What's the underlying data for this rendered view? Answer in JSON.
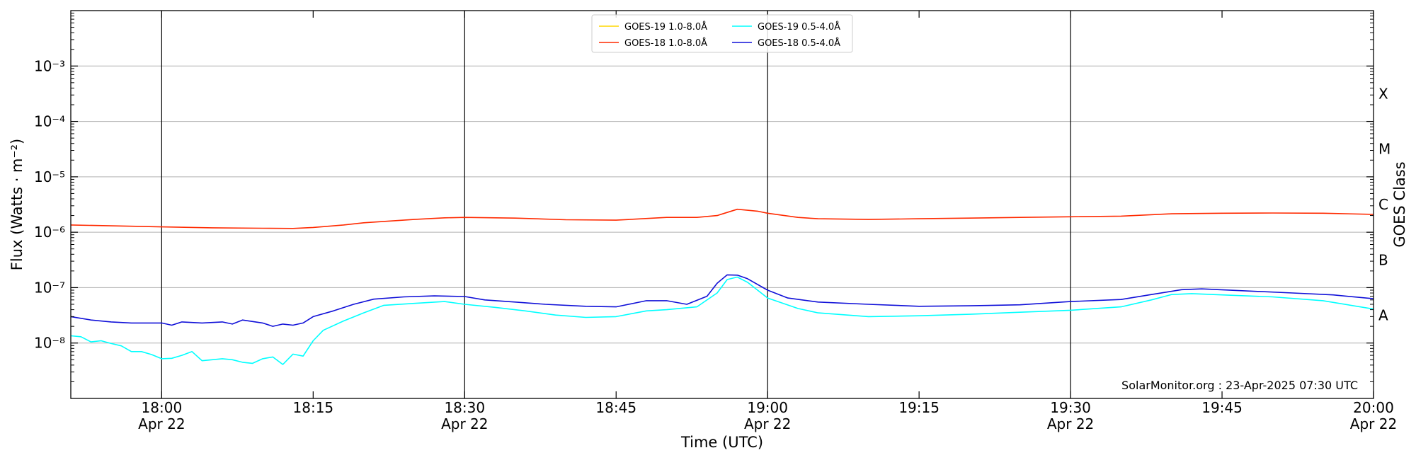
{
  "chart_data": {
    "type": "line",
    "xlabel": "Time (UTC)",
    "ylabel": "Flux (Watts · m⁻²)",
    "ylabel_right": "GOES Class",
    "x_range": [
      "2025-04-22T17:51",
      "2025-04-22T20:00"
    ],
    "y_scale": "log",
    "y_range": [
      1e-09,
      0.01
    ],
    "y_ticks": [
      {
        "value": 1e-08,
        "label": "10⁻⁸"
      },
      {
        "value": 1e-07,
        "label": "10⁻⁷"
      },
      {
        "value": 1e-06,
        "label": "10⁻⁶"
      },
      {
        "value": 1e-05,
        "label": "10⁻⁵"
      },
      {
        "value": 0.0001,
        "label": "10⁻⁴"
      },
      {
        "value": 0.001,
        "label": "10⁻³"
      }
    ],
    "x_ticks": [
      {
        "time": "2025-04-22T18:00",
        "label": "18:00",
        "date": "Apr 22",
        "major": true
      },
      {
        "time": "2025-04-22T18:15",
        "label": "18:15",
        "date": "",
        "major": false
      },
      {
        "time": "2025-04-22T18:30",
        "label": "18:30",
        "date": "Apr 22",
        "major": true
      },
      {
        "time": "2025-04-22T18:45",
        "label": "18:45",
        "date": "",
        "major": false
      },
      {
        "time": "2025-04-22T19:00",
        "label": "19:00",
        "date": "Apr 22",
        "major": true
      },
      {
        "time": "2025-04-22T19:15",
        "label": "19:15",
        "date": "",
        "major": false
      },
      {
        "time": "2025-04-22T19:30",
        "label": "19:30",
        "date": "Apr 22",
        "major": true
      },
      {
        "time": "2025-04-22T19:45",
        "label": "19:45",
        "date": "",
        "major": false
      },
      {
        "time": "2025-04-22T20:00",
        "label": "20:00",
        "date": "Apr 22",
        "major": true
      }
    ],
    "goes_classes": [
      {
        "label": "A",
        "lower": 1e-08
      },
      {
        "label": "B",
        "lower": 1e-07
      },
      {
        "label": "C",
        "lower": 1e-06
      },
      {
        "label": "M",
        "lower": 1e-05
      },
      {
        "label": "X",
        "lower": 0.0001
      }
    ],
    "grid": true,
    "legend_position": "top-center",
    "credit": "SolarMonitor.org : 23-Apr-2025 07:30 UTC",
    "series": [
      {
        "name": "GOES-19 1.0-8.0Å",
        "color": "#ffd700",
        "points": []
      },
      {
        "name": "GOES-18 1.0-8.0Å",
        "color": "#ff2a00",
        "points": [
          [
            "2025-04-22T17:51",
            1.35e-06
          ],
          [
            "2025-04-22T18:00",
            1.25e-06
          ],
          [
            "2025-04-22T18:05",
            1.2e-06
          ],
          [
            "2025-04-22T18:10",
            1.18e-06
          ],
          [
            "2025-04-22T18:13",
            1.17e-06
          ],
          [
            "2025-04-22T18:15",
            1.22e-06
          ],
          [
            "2025-04-22T18:18",
            1.35e-06
          ],
          [
            "2025-04-22T18:20",
            1.48e-06
          ],
          [
            "2025-04-22T18:25",
            1.7e-06
          ],
          [
            "2025-04-22T18:28",
            1.82e-06
          ],
          [
            "2025-04-22T18:30",
            1.85e-06
          ],
          [
            "2025-04-22T18:35",
            1.8e-06
          ],
          [
            "2025-04-22T18:40",
            1.68e-06
          ],
          [
            "2025-04-22T18:45",
            1.65e-06
          ],
          [
            "2025-04-22T18:50",
            1.85e-06
          ],
          [
            "2025-04-22T18:53",
            1.85e-06
          ],
          [
            "2025-04-22T18:55",
            2e-06
          ],
          [
            "2025-04-22T18:57",
            2.6e-06
          ],
          [
            "2025-04-22T18:59",
            2.4e-06
          ],
          [
            "2025-04-22T19:00",
            2.2e-06
          ],
          [
            "2025-04-22T19:03",
            1.85e-06
          ],
          [
            "2025-04-22T19:05",
            1.75e-06
          ],
          [
            "2025-04-22T19:10",
            1.7e-06
          ],
          [
            "2025-04-22T19:15",
            1.75e-06
          ],
          [
            "2025-04-22T19:20",
            1.8e-06
          ],
          [
            "2025-04-22T19:25",
            1.85e-06
          ],
          [
            "2025-04-22T19:30",
            1.9e-06
          ],
          [
            "2025-04-22T19:35",
            1.95e-06
          ],
          [
            "2025-04-22T19:40",
            2.15e-06
          ],
          [
            "2025-04-22T19:45",
            2.2e-06
          ],
          [
            "2025-04-22T19:50",
            2.22e-06
          ],
          [
            "2025-04-22T19:55",
            2.2e-06
          ],
          [
            "2025-04-22T20:00",
            2.1e-06
          ]
        ]
      },
      {
        "name": "GOES-19 0.5-4.0Å",
        "color": "#00ffff",
        "points": [
          [
            "2025-04-22T17:51",
            1.35e-08
          ],
          [
            "2025-04-22T17:52",
            1.3e-08
          ],
          [
            "2025-04-22T17:53",
            1.05e-08
          ],
          [
            "2025-04-22T17:54",
            1.1e-08
          ],
          [
            "2025-04-22T17:55",
            9.8e-09
          ],
          [
            "2025-04-22T17:56",
            8.9e-09
          ],
          [
            "2025-04-22T17:57",
            7e-09
          ],
          [
            "2025-04-22T17:58",
            7e-09
          ],
          [
            "2025-04-22T17:59",
            6.2e-09
          ],
          [
            "2025-04-22T18:00",
            5.2e-09
          ],
          [
            "2025-04-22T18:01",
            5.3e-09
          ],
          [
            "2025-04-22T18:02",
            6e-09
          ],
          [
            "2025-04-22T18:03",
            7e-09
          ],
          [
            "2025-04-22T18:04",
            4.8e-09
          ],
          [
            "2025-04-22T18:05",
            5e-09
          ],
          [
            "2025-04-22T18:06",
            5.2e-09
          ],
          [
            "2025-04-22T18:07",
            5e-09
          ],
          [
            "2025-04-22T18:08",
            4.5e-09
          ],
          [
            "2025-04-22T18:09",
            4.3e-09
          ],
          [
            "2025-04-22T18:10",
            5.2e-09
          ],
          [
            "2025-04-22T18:11",
            5.6e-09
          ],
          [
            "2025-04-22T18:12",
            4.1e-09
          ],
          [
            "2025-04-22T18:13",
            6.3e-09
          ],
          [
            "2025-04-22T18:14",
            5.8e-09
          ],
          [
            "2025-04-22T18:15",
            1.1e-08
          ],
          [
            "2025-04-22T18:16",
            1.7e-08
          ],
          [
            "2025-04-22T18:18",
            2.5e-08
          ],
          [
            "2025-04-22T18:20",
            3.5e-08
          ],
          [
            "2025-04-22T18:22",
            4.8e-08
          ],
          [
            "2025-04-22T18:25",
            5.2e-08
          ],
          [
            "2025-04-22T18:28",
            5.6e-08
          ],
          [
            "2025-04-22T18:30",
            5e-08
          ],
          [
            "2025-04-22T18:33",
            4.4e-08
          ],
          [
            "2025-04-22T18:36",
            3.8e-08
          ],
          [
            "2025-04-22T18:39",
            3.2e-08
          ],
          [
            "2025-04-22T18:42",
            2.9e-08
          ],
          [
            "2025-04-22T18:45",
            3e-08
          ],
          [
            "2025-04-22T18:48",
            3.8e-08
          ],
          [
            "2025-04-22T18:50",
            4e-08
          ],
          [
            "2025-04-22T18:53",
            4.5e-08
          ],
          [
            "2025-04-22T18:55",
            8e-08
          ],
          [
            "2025-04-22T18:56",
            1.4e-07
          ],
          [
            "2025-04-22T18:57",
            1.55e-07
          ],
          [
            "2025-04-22T18:58",
            1.25e-07
          ],
          [
            "2025-04-22T19:00",
            6.5e-08
          ],
          [
            "2025-04-22T19:03",
            4.2e-08
          ],
          [
            "2025-04-22T19:05",
            3.5e-08
          ],
          [
            "2025-04-22T19:10",
            3e-08
          ],
          [
            "2025-04-22T19:15",
            3.1e-08
          ],
          [
            "2025-04-22T19:20",
            3.3e-08
          ],
          [
            "2025-04-22T19:25",
            3.6e-08
          ],
          [
            "2025-04-22T19:30",
            3.9e-08
          ],
          [
            "2025-04-22T19:35",
            4.5e-08
          ],
          [
            "2025-04-22T19:38",
            6e-08
          ],
          [
            "2025-04-22T19:40",
            7.5e-08
          ],
          [
            "2025-04-22T19:42",
            7.8e-08
          ],
          [
            "2025-04-22T19:45",
            7.4e-08
          ],
          [
            "2025-04-22T19:50",
            6.8e-08
          ],
          [
            "2025-04-22T19:55",
            5.8e-08
          ],
          [
            "2025-04-22T20:00",
            4.1e-08
          ]
        ]
      },
      {
        "name": "GOES-18 0.5-4.0Å",
        "color": "#1010d8",
        "points": [
          [
            "2025-04-22T17:51",
            3e-08
          ],
          [
            "2025-04-22T17:53",
            2.6e-08
          ],
          [
            "2025-04-22T17:55",
            2.4e-08
          ],
          [
            "2025-04-22T17:57",
            2.3e-08
          ],
          [
            "2025-04-22T18:00",
            2.3e-08
          ],
          [
            "2025-04-22T18:01",
            2.1e-08
          ],
          [
            "2025-04-22T18:02",
            2.4e-08
          ],
          [
            "2025-04-22T18:04",
            2.3e-08
          ],
          [
            "2025-04-22T18:06",
            2.4e-08
          ],
          [
            "2025-04-22T18:07",
            2.2e-08
          ],
          [
            "2025-04-22T18:08",
            2.6e-08
          ],
          [
            "2025-04-22T18:10",
            2.3e-08
          ],
          [
            "2025-04-22T18:11",
            2e-08
          ],
          [
            "2025-04-22T18:12",
            2.2e-08
          ],
          [
            "2025-04-22T18:13",
            2.1e-08
          ],
          [
            "2025-04-22T18:14",
            2.3e-08
          ],
          [
            "2025-04-22T18:15",
            3e-08
          ],
          [
            "2025-04-22T18:17",
            3.8e-08
          ],
          [
            "2025-04-22T18:19",
            5e-08
          ],
          [
            "2025-04-22T18:21",
            6.2e-08
          ],
          [
            "2025-04-22T18:24",
            6.8e-08
          ],
          [
            "2025-04-22T18:27",
            7.1e-08
          ],
          [
            "2025-04-22T18:30",
            6.9e-08
          ],
          [
            "2025-04-22T18:32",
            6e-08
          ],
          [
            "2025-04-22T18:35",
            5.5e-08
          ],
          [
            "2025-04-22T18:38",
            5e-08
          ],
          [
            "2025-04-22T18:42",
            4.6e-08
          ],
          [
            "2025-04-22T18:45",
            4.5e-08
          ],
          [
            "2025-04-22T18:48",
            5.8e-08
          ],
          [
            "2025-04-22T18:50",
            5.8e-08
          ],
          [
            "2025-04-22T18:52",
            5e-08
          ],
          [
            "2025-04-22T18:54",
            7e-08
          ],
          [
            "2025-04-22T18:55",
            1.2e-07
          ],
          [
            "2025-04-22T18:56",
            1.7e-07
          ],
          [
            "2025-04-22T18:57",
            1.68e-07
          ],
          [
            "2025-04-22T18:58",
            1.45e-07
          ],
          [
            "2025-04-22T19:00",
            9e-08
          ],
          [
            "2025-04-22T19:02",
            6.5e-08
          ],
          [
            "2025-04-22T19:05",
            5.5e-08
          ],
          [
            "2025-04-22T19:10",
            5e-08
          ],
          [
            "2025-04-22T19:15",
            4.6e-08
          ],
          [
            "2025-04-22T19:20",
            4.7e-08
          ],
          [
            "2025-04-22T19:25",
            4.9e-08
          ],
          [
            "2025-04-22T19:30",
            5.6e-08
          ],
          [
            "2025-04-22T19:35",
            6.1e-08
          ],
          [
            "2025-04-22T19:38",
            7.5e-08
          ],
          [
            "2025-04-22T19:41",
            9.2e-08
          ],
          [
            "2025-04-22T19:43",
            9.5e-08
          ],
          [
            "2025-04-22T19:47",
            8.8e-08
          ],
          [
            "2025-04-22T19:52",
            8e-08
          ],
          [
            "2025-04-22T19:56",
            7.4e-08
          ],
          [
            "2025-04-22T20:00",
            6.3e-08
          ]
        ]
      }
    ]
  }
}
